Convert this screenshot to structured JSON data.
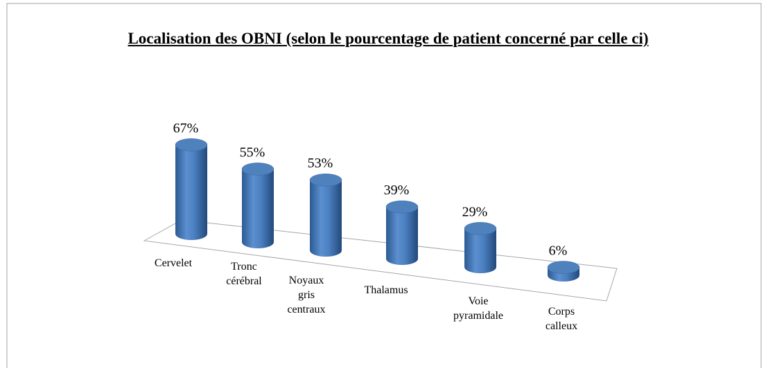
{
  "chart_data": {
    "type": "bar3d",
    "title": "Localisation des OBNI (selon le pourcentage de patient concerné par celle ci)",
    "categories": [
      "Cervelet",
      "Tronc cérébral",
      "Noyaux gris centraux",
      "Thalamus",
      "Voie pyramidale",
      "Corps calleux"
    ],
    "values": [
      67,
      55,
      53,
      39,
      29,
      6
    ],
    "value_labels": [
      "67%",
      "55%",
      "53%",
      "39%",
      "29%",
      "6%"
    ],
    "color": "#4f81bd"
  }
}
